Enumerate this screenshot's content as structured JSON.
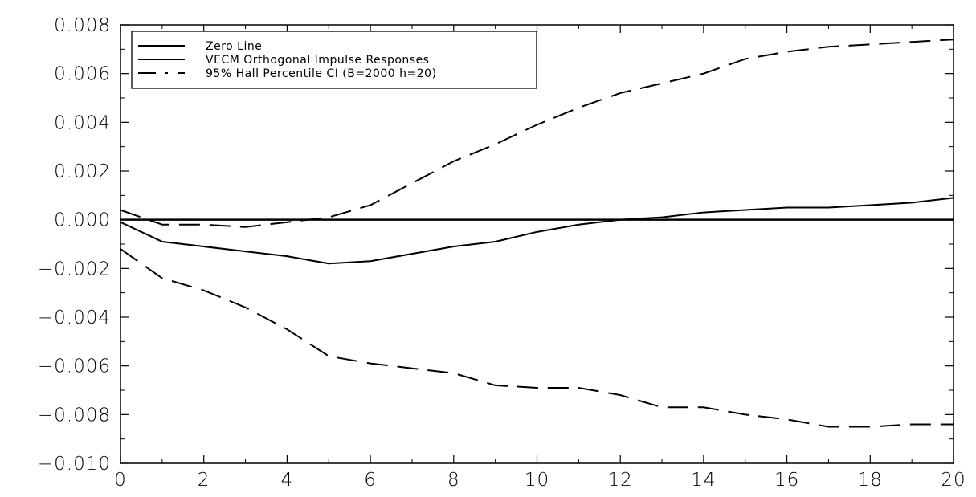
{
  "chart_data": {
    "type": "line",
    "title": "",
    "xlabel": "",
    "ylabel": "",
    "xlim": [
      0,
      20
    ],
    "ylim": [
      -0.01,
      0.008
    ],
    "x_ticks": [
      0,
      2,
      4,
      6,
      8,
      10,
      12,
      14,
      16,
      18,
      20
    ],
    "x_tick_labels": [
      "0",
      "2",
      "4",
      "6",
      "8",
      "10",
      "12",
      "14",
      "16",
      "18",
      "20"
    ],
    "y_ticks": [
      0.008,
      0.006,
      0.004,
      0.002,
      0.0,
      -0.002,
      -0.004,
      -0.006,
      -0.008,
      -0.01
    ],
    "y_tick_labels": [
      "0.008",
      "0.006",
      "0.004",
      "0.002",
      "0.000",
      "−0.002",
      "−0.004",
      "−0.006",
      "−0.008",
      "−0.010"
    ],
    "grid": false,
    "legend_position": "top-left",
    "x": [
      0,
      1,
      2,
      3,
      4,
      5,
      6,
      7,
      8,
      9,
      10,
      11,
      12,
      13,
      14,
      15,
      16,
      17,
      18,
      19,
      20
    ],
    "series": [
      {
        "name": "Zero Line",
        "style": "solid",
        "width": 2.5,
        "values": [
          0,
          0,
          0,
          0,
          0,
          0,
          0,
          0,
          0,
          0,
          0,
          0,
          0,
          0,
          0,
          0,
          0,
          0,
          0,
          0,
          0
        ]
      },
      {
        "name": "VECM Orthogonal Impulse Responses",
        "style": "solid",
        "width": 2,
        "values": [
          -0.0001,
          -0.0009,
          -0.0011,
          -0.0013,
          -0.0015,
          -0.0018,
          -0.0017,
          -0.0014,
          -0.0011,
          -0.0009,
          -0.0005,
          -0.0002,
          0.0,
          0.0001,
          0.0003,
          0.0004,
          0.0005,
          0.0005,
          0.0006,
          0.0007,
          0.0009
        ]
      },
      {
        "name": "95% Hall Percentile CI (B=2000 h=20)",
        "style": "dashed",
        "width": 2,
        "values": [
          0.0004,
          -0.0002,
          -0.0002,
          -0.0003,
          -0.0001,
          0.0001,
          0.0006,
          0.0015,
          0.0024,
          0.0031,
          0.0039,
          0.0046,
          0.0052,
          0.0056,
          0.006,
          0.0066,
          0.0069,
          0.0071,
          0.0072,
          0.0073,
          0.0074
        ]
      },
      {
        "name": "95% Hall Percentile CI (B=2000 h=20)",
        "style": "dashed",
        "width": 2,
        "values": [
          -0.0012,
          -0.0024,
          -0.0029,
          -0.0036,
          -0.0045,
          -0.0056,
          -0.0059,
          -0.0061,
          -0.0063,
          -0.0068,
          -0.0069,
          -0.0069,
          -0.0072,
          -0.0077,
          -0.0077,
          -0.008,
          -0.0082,
          -0.0085,
          -0.0085,
          -0.0084,
          -0.0084
        ]
      }
    ],
    "legend": [
      {
        "label": "Zero Line",
        "style": "solid"
      },
      {
        "label": "VECM Orthogonal Impulse Responses",
        "style": "solid"
      },
      {
        "label": "95% Hall Percentile CI (B=2000 h=20)",
        "style": "dash-dot"
      }
    ]
  }
}
